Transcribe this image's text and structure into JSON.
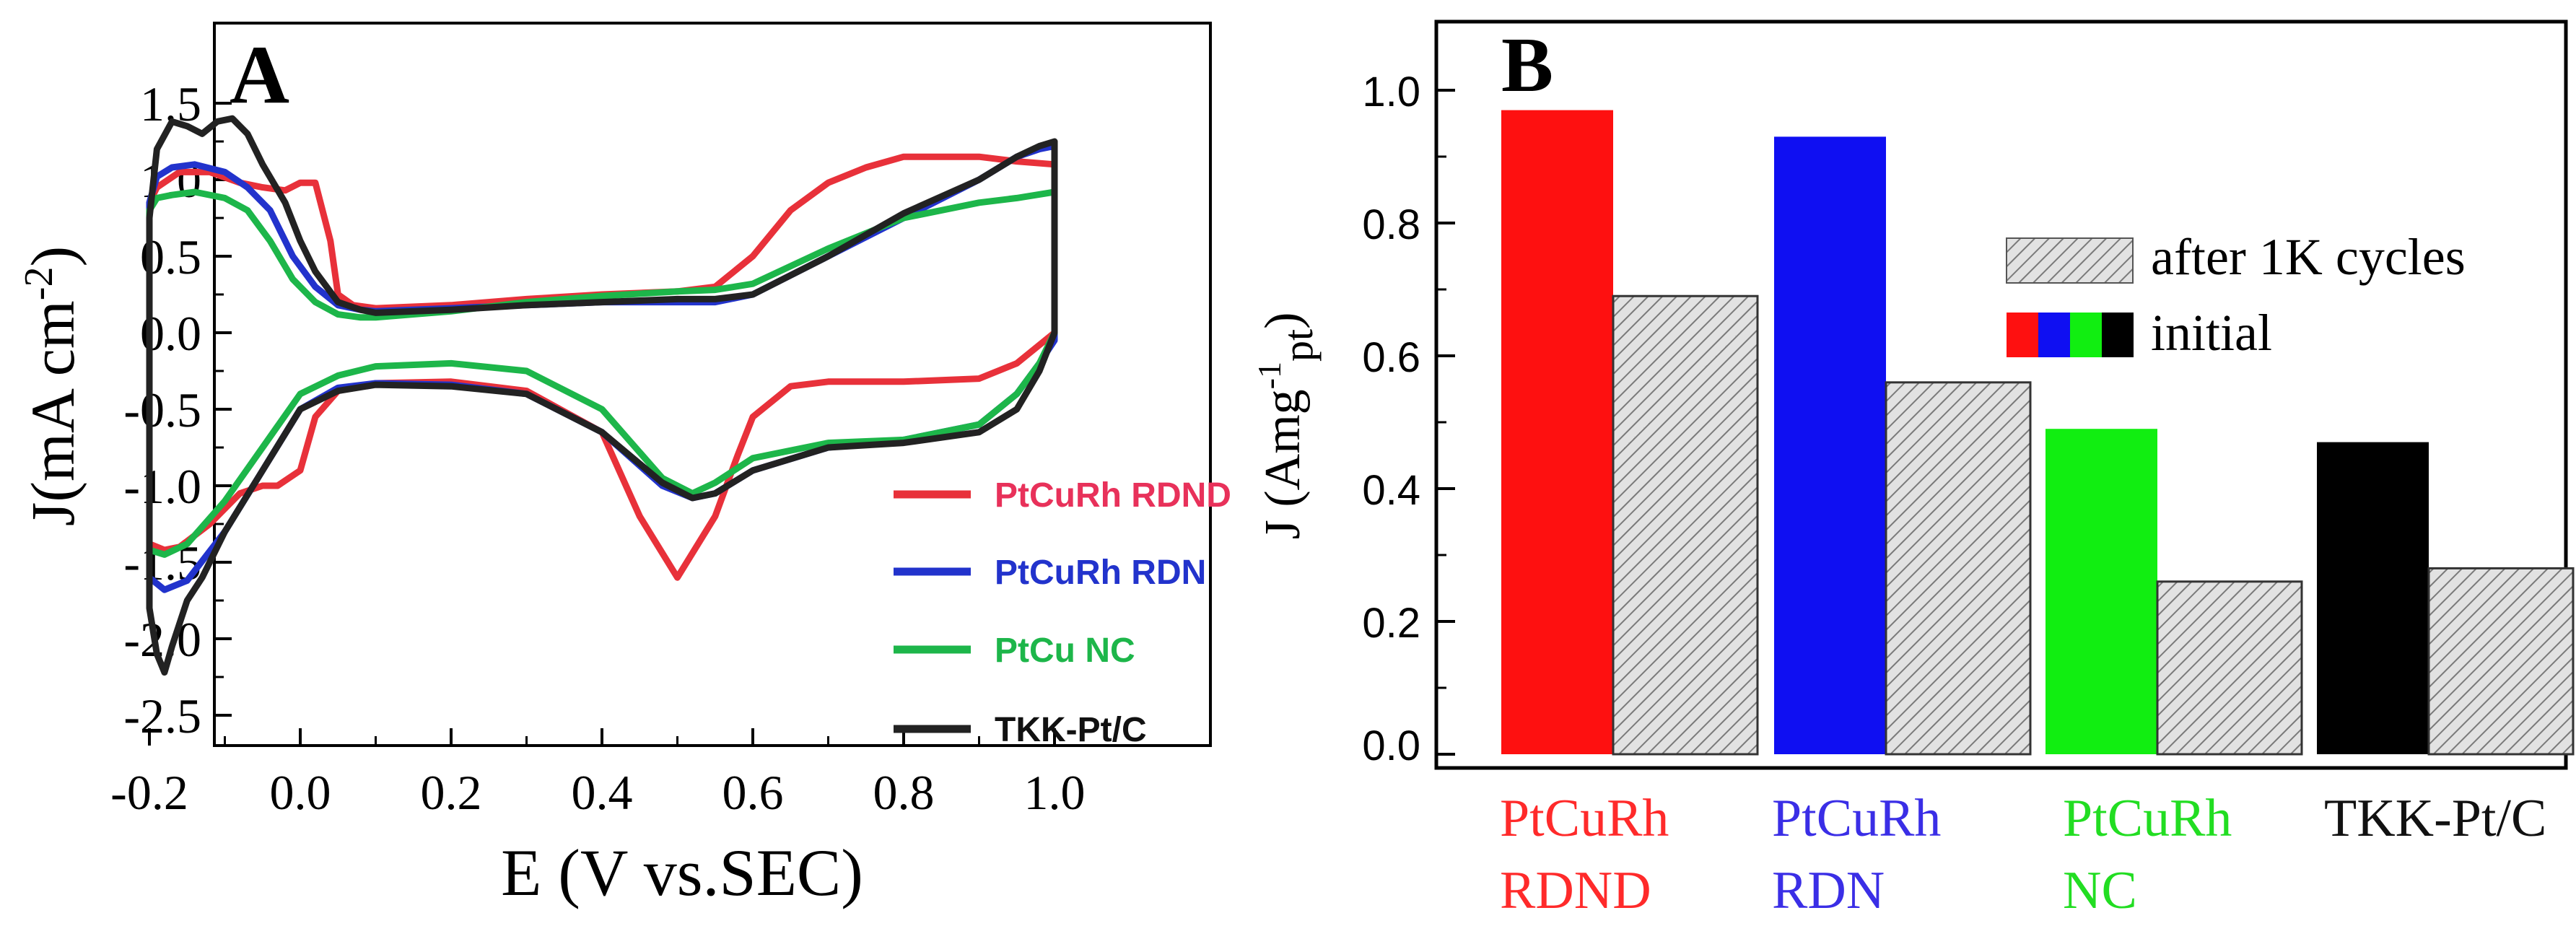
{
  "chart_data": [
    {
      "panel_label": "A",
      "type": "line",
      "xlabel": "E (V vs.SEC)",
      "ylabel": "J(mA cm",
      "ylabel_sup": "-2",
      "ylabel_close": ")",
      "xlim": [
        -0.3,
        1.04
      ],
      "ylim": [
        -2.5,
        1.6
      ],
      "xticks": [
        "-0.2",
        "0.0",
        "0.2",
        "0.4",
        "0.6",
        "0.8",
        "1.0"
      ],
      "yticks": [
        "1.5",
        "1.0",
        "0.5",
        "0.0",
        "-0.5",
        "-1.0",
        "-1.5",
        "-2.0",
        "-2.5"
      ],
      "legend_position": "lower-right",
      "series": [
        {
          "name": "PtCuRh RDND",
          "color": "#e8313a",
          "legend_color": "#e8315a",
          "x": [
            -0.2,
            -0.2,
            -0.19,
            -0.16,
            -0.12,
            -0.08,
            -0.05,
            -0.02,
            0.0,
            0.02,
            0.04,
            0.05,
            0.07,
            0.1,
            0.2,
            0.3,
            0.4,
            0.5,
            0.55,
            0.6,
            0.65,
            0.7,
            0.75,
            0.8,
            0.85,
            0.9,
            0.95,
            1.0,
            1.0,
            0.95,
            0.9,
            0.8,
            0.7,
            0.65,
            0.6,
            0.58,
            0.55,
            0.5,
            0.45,
            0.4,
            0.3,
            0.2,
            0.1,
            0.05,
            0.02,
            0.0,
            -0.03,
            -0.05,
            -0.08,
            -0.12,
            -0.16,
            -0.18,
            -0.2,
            -0.2
          ],
          "y": [
            -1.3,
            0.85,
            0.95,
            1.05,
            1.05,
            0.98,
            0.95,
            0.93,
            0.98,
            0.98,
            0.6,
            0.25,
            0.18,
            0.16,
            0.18,
            0.22,
            0.25,
            0.27,
            0.3,
            0.5,
            0.8,
            0.98,
            1.08,
            1.15,
            1.15,
            1.15,
            1.12,
            1.1,
            0.0,
            -0.2,
            -0.3,
            -0.32,
            -0.32,
            -0.35,
            -0.55,
            -0.8,
            -1.2,
            -1.6,
            -1.2,
            -0.65,
            -0.38,
            -0.32,
            -0.33,
            -0.38,
            -0.55,
            -0.9,
            -1.0,
            -1.0,
            -1.05,
            -1.25,
            -1.4,
            -1.42,
            -1.38,
            -1.3
          ]
        },
        {
          "name": "PtCuRh  RDN",
          "color": "#2233cc",
          "legend_color": "#2233cc",
          "x": [
            -0.2,
            -0.2,
            -0.19,
            -0.17,
            -0.14,
            -0.1,
            -0.07,
            -0.04,
            -0.01,
            0.02,
            0.05,
            0.08,
            0.1,
            0.2,
            0.3,
            0.4,
            0.5,
            0.55,
            0.6,
            0.7,
            0.8,
            0.9,
            0.95,
            0.98,
            1.0,
            1.0,
            0.98,
            0.95,
            0.9,
            0.8,
            0.7,
            0.6,
            0.55,
            0.52,
            0.48,
            0.4,
            0.3,
            0.2,
            0.1,
            0.05,
            0.0,
            -0.05,
            -0.1,
            -0.15,
            -0.18,
            -0.2,
            -0.2
          ],
          "y": [
            -1.5,
            0.85,
            1.02,
            1.08,
            1.1,
            1.05,
            0.95,
            0.8,
            0.5,
            0.3,
            0.18,
            0.15,
            0.14,
            0.16,
            0.18,
            0.2,
            0.2,
            0.2,
            0.25,
            0.5,
            0.75,
            1.0,
            1.15,
            1.2,
            1.22,
            -0.05,
            -0.2,
            -0.4,
            -0.6,
            -0.7,
            -0.75,
            -0.9,
            -1.05,
            -1.08,
            -1.0,
            -0.65,
            -0.4,
            -0.34,
            -0.33,
            -0.36,
            -0.5,
            -0.9,
            -1.3,
            -1.62,
            -1.68,
            -1.6,
            -1.5
          ]
        },
        {
          "name": "PtCu  NC",
          "color": "#1db64a",
          "legend_color": "#1db64a",
          "x": [
            -0.2,
            -0.2,
            -0.19,
            -0.17,
            -0.14,
            -0.1,
            -0.07,
            -0.04,
            -0.01,
            0.02,
            0.05,
            0.08,
            0.1,
            0.2,
            0.3,
            0.4,
            0.5,
            0.55,
            0.6,
            0.7,
            0.8,
            0.9,
            0.95,
            1.0,
            1.0,
            0.98,
            0.95,
            0.9,
            0.8,
            0.7,
            0.6,
            0.55,
            0.52,
            0.48,
            0.4,
            0.3,
            0.2,
            0.1,
            0.05,
            0.0,
            -0.05,
            -0.1,
            -0.15,
            -0.18,
            -0.2,
            -0.2
          ],
          "y": [
            -1.3,
            0.8,
            0.88,
            0.9,
            0.92,
            0.88,
            0.8,
            0.6,
            0.35,
            0.2,
            0.12,
            0.1,
            0.1,
            0.14,
            0.2,
            0.24,
            0.27,
            0.28,
            0.32,
            0.55,
            0.75,
            0.85,
            0.88,
            0.92,
            0.0,
            -0.2,
            -0.4,
            -0.6,
            -0.7,
            -0.72,
            -0.82,
            -0.98,
            -1.05,
            -0.95,
            -0.5,
            -0.25,
            -0.2,
            -0.22,
            -0.28,
            -0.4,
            -0.75,
            -1.1,
            -1.38,
            -1.45,
            -1.42,
            -1.3
          ]
        },
        {
          "name": "TKK-Pt/C",
          "color": "#222222",
          "legend_color": "#111111",
          "x": [
            -0.2,
            -0.2,
            -0.19,
            -0.17,
            -0.15,
            -0.13,
            -0.11,
            -0.09,
            -0.07,
            -0.05,
            -0.02,
            0.0,
            0.02,
            0.05,
            0.08,
            0.1,
            0.2,
            0.3,
            0.4,
            0.5,
            0.55,
            0.6,
            0.7,
            0.8,
            0.9,
            0.95,
            0.98,
            1.0,
            1.0,
            0.98,
            0.95,
            0.9,
            0.8,
            0.7,
            0.6,
            0.55,
            0.52,
            0.48,
            0.4,
            0.3,
            0.2,
            0.1,
            0.05,
            0.0,
            -0.05,
            -0.1,
            -0.13,
            -0.15,
            -0.17,
            -0.18,
            -0.19,
            -0.2,
            -0.2
          ],
          "y": [
            -1.45,
            0.75,
            1.2,
            1.38,
            1.35,
            1.3,
            1.38,
            1.4,
            1.3,
            1.1,
            0.85,
            0.6,
            0.4,
            0.2,
            0.15,
            0.13,
            0.15,
            0.18,
            0.2,
            0.22,
            0.22,
            0.25,
            0.5,
            0.78,
            1.0,
            1.15,
            1.22,
            1.25,
            0.0,
            -0.25,
            -0.5,
            -0.65,
            -0.72,
            -0.75,
            -0.9,
            -1.05,
            -1.08,
            -0.98,
            -0.65,
            -0.4,
            -0.35,
            -0.34,
            -0.38,
            -0.5,
            -0.9,
            -1.3,
            -1.6,
            -1.75,
            -2.05,
            -2.22,
            -2.1,
            -1.8,
            -1.45
          ]
        }
      ]
    },
    {
      "panel_label": "B",
      "type": "bar",
      "ylabel": "J (Amg",
      "ylabel_sup": "-1",
      "ylabel_sub": "pt",
      "ylabel_close": ")",
      "ylim": [
        0,
        1.1
      ],
      "yticks": [
        "0.0",
        "0.2",
        "0.4",
        "0.6",
        "0.8",
        "1.0"
      ],
      "categories": [
        {
          "line1": "PtCuRh",
          "line2": "RDND",
          "color": "#ff2a2a"
        },
        {
          "line1": "PtCuRh",
          "line2": "RDN",
          "color": "#3a2ee6"
        },
        {
          "line1": "PtCuRh",
          "line2": "NC",
          "color": "#22dd22"
        },
        {
          "line1": "TKK-Pt/C",
          "line2": "",
          "color": "#111111"
        }
      ],
      "series": [
        {
          "name": "initial",
          "values": [
            0.97,
            0.93,
            0.49,
            0.47
          ],
          "colors": [
            "#fe1010",
            "#0f0ff2",
            "#11ee11",
            "#000000"
          ]
        },
        {
          "name": "after 1K cycles",
          "values": [
            0.69,
            0.56,
            0.26,
            0.28
          ],
          "fill": "hatched-gray"
        }
      ],
      "legend_position": "upper-right"
    }
  ]
}
